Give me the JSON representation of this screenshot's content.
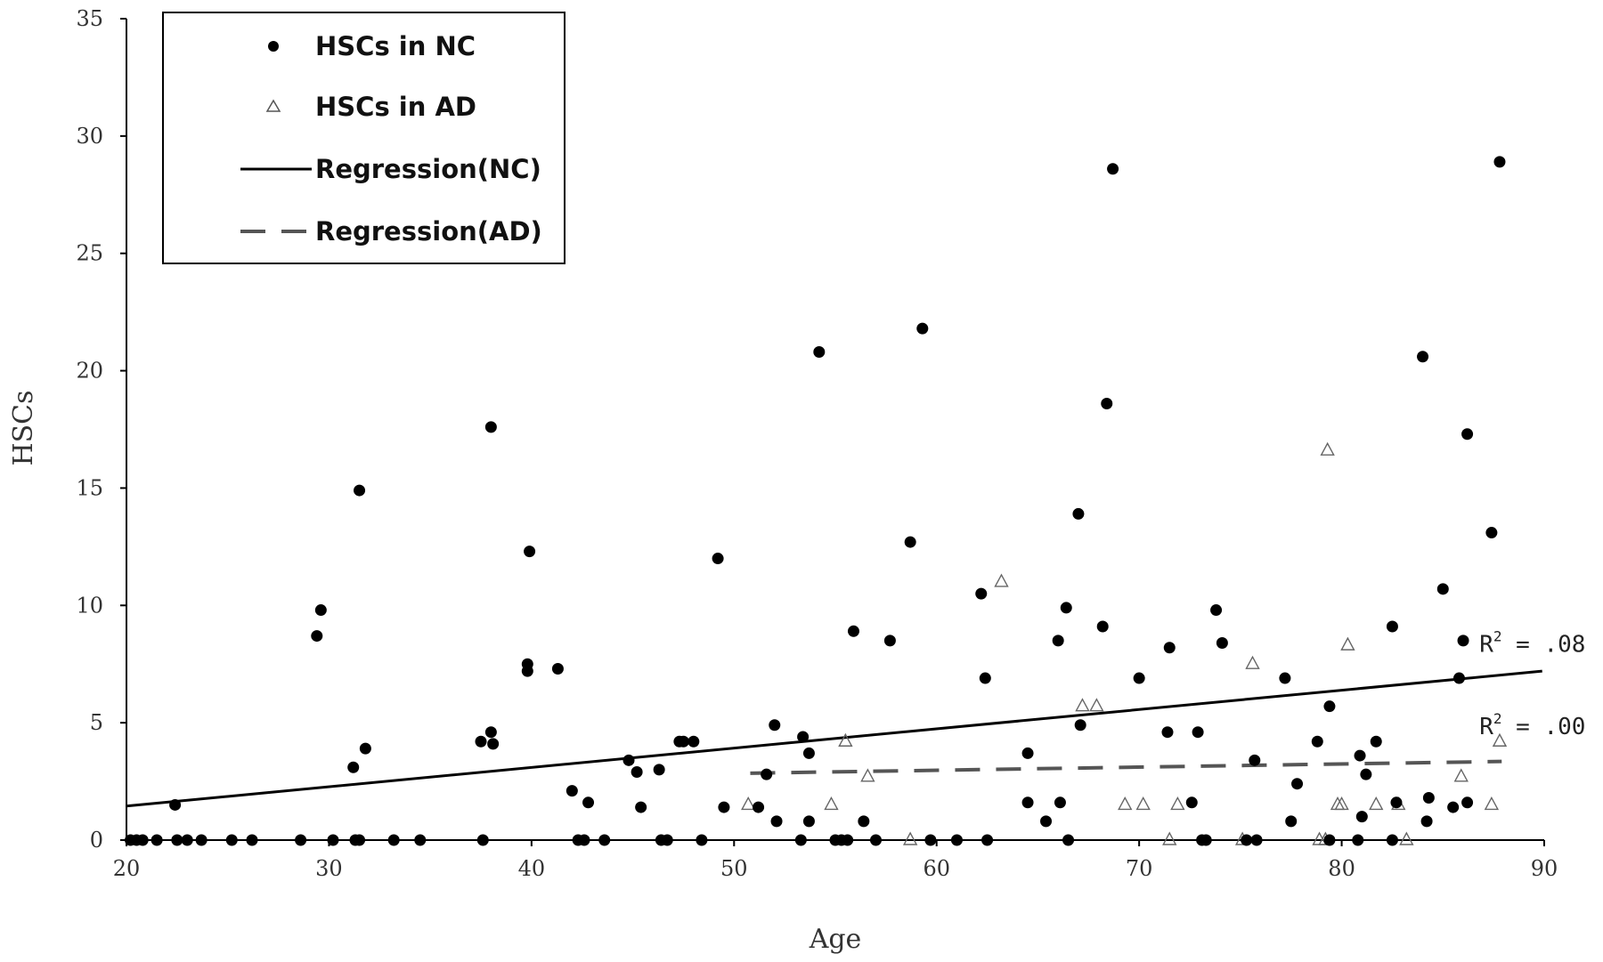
{
  "chart_data": {
    "type": "scatter",
    "title": "",
    "xlabel": "Age",
    "ylabel": "HSCs",
    "xlim": [
      20,
      90
    ],
    "ylim": [
      0,
      35
    ],
    "x_ticks": [
      "20",
      "30",
      "40",
      "50",
      "60",
      "70",
      "80",
      "90"
    ],
    "y_ticks": [
      "0",
      "5",
      "10",
      "15",
      "20",
      "25",
      "30",
      "35"
    ],
    "grid": false,
    "legend_position": "top-left",
    "legend": [
      {
        "label": "HSCs in NC",
        "marker": "filled-circle"
      },
      {
        "label": "HSCs in AD",
        "marker": "open-triangle"
      },
      {
        "label": "Regression(NC)",
        "marker": "solid-line"
      },
      {
        "label": "Regression(AD)",
        "marker": "dashed-line"
      }
    ],
    "series": [
      {
        "name": "HSCs in NC",
        "points": [
          [
            20.2,
            0
          ],
          [
            20.5,
            0
          ],
          [
            20.8,
            0
          ],
          [
            21.5,
            0
          ],
          [
            22.4,
            1.5
          ],
          [
            22.5,
            0
          ],
          [
            23.0,
            0
          ],
          [
            23.7,
            0
          ],
          [
            25.2,
            0
          ],
          [
            26.2,
            0
          ],
          [
            28.6,
            0
          ],
          [
            29.4,
            8.7
          ],
          [
            29.6,
            9.8
          ],
          [
            30.2,
            0
          ],
          [
            31.2,
            3.1
          ],
          [
            31.3,
            0
          ],
          [
            31.5,
            0
          ],
          [
            31.5,
            14.9
          ],
          [
            31.8,
            3.9
          ],
          [
            33.2,
            0
          ],
          [
            34.5,
            0
          ],
          [
            37.5,
            4.2
          ],
          [
            37.6,
            0
          ],
          [
            38.0,
            17.6
          ],
          [
            38.0,
            4.6
          ],
          [
            38.1,
            4.1
          ],
          [
            39.8,
            7.2
          ],
          [
            39.8,
            7.5
          ],
          [
            39.9,
            12.3
          ],
          [
            41.3,
            7.3
          ],
          [
            42.0,
            2.1
          ],
          [
            42.3,
            0
          ],
          [
            42.6,
            0
          ],
          [
            42.8,
            1.6
          ],
          [
            43.6,
            0
          ],
          [
            44.8,
            3.4
          ],
          [
            45.2,
            2.9
          ],
          [
            45.4,
            1.4
          ],
          [
            46.3,
            3.0
          ],
          [
            46.4,
            0
          ],
          [
            46.7,
            0
          ],
          [
            47.3,
            4.2
          ],
          [
            47.5,
            4.2
          ],
          [
            48.0,
            4.2
          ],
          [
            48.4,
            0
          ],
          [
            49.2,
            12.0
          ],
          [
            49.5,
            1.4
          ],
          [
            51.2,
            1.4
          ],
          [
            51.6,
            2.8
          ],
          [
            52.0,
            4.9
          ],
          [
            52.1,
            0.8
          ],
          [
            53.3,
            0
          ],
          [
            53.4,
            4.4
          ],
          [
            53.7,
            3.7
          ],
          [
            53.7,
            0.8
          ],
          [
            54.2,
            20.8
          ],
          [
            55.0,
            0
          ],
          [
            55.3,
            0
          ],
          [
            55.6,
            0
          ],
          [
            55.9,
            8.9
          ],
          [
            56.4,
            0.8
          ],
          [
            57.0,
            0
          ],
          [
            57.7,
            8.5
          ],
          [
            58.7,
            12.7
          ],
          [
            59.3,
            21.8
          ],
          [
            59.7,
            0
          ],
          [
            61.0,
            0
          ],
          [
            62.2,
            10.5
          ],
          [
            62.4,
            6.9
          ],
          [
            62.5,
            0
          ],
          [
            64.5,
            3.7
          ],
          [
            64.5,
            1.6
          ],
          [
            65.4,
            0.8
          ],
          [
            66.0,
            8.5
          ],
          [
            66.1,
            1.6
          ],
          [
            66.4,
            9.9
          ],
          [
            66.5,
            0
          ],
          [
            67.0,
            13.9
          ],
          [
            67.1,
            4.9
          ],
          [
            68.2,
            9.1
          ],
          [
            68.4,
            18.6
          ],
          [
            68.7,
            28.6
          ],
          [
            70.0,
            6.9
          ],
          [
            71.4,
            4.6
          ],
          [
            71.5,
            8.2
          ],
          [
            72.6,
            1.6
          ],
          [
            72.9,
            4.6
          ],
          [
            73.1,
            0
          ],
          [
            73.3,
            0
          ],
          [
            73.8,
            9.8
          ],
          [
            74.1,
            8.4
          ],
          [
            75.3,
            0
          ],
          [
            75.7,
            3.4
          ],
          [
            75.8,
            0
          ],
          [
            77.2,
            6.9
          ],
          [
            77.5,
            0.8
          ],
          [
            77.8,
            2.4
          ],
          [
            78.8,
            4.2
          ],
          [
            79.4,
            5.7
          ],
          [
            79.4,
            0
          ],
          [
            80.8,
            0
          ],
          [
            80.9,
            3.6
          ],
          [
            81.0,
            1.0
          ],
          [
            81.2,
            2.8
          ],
          [
            81.7,
            4.2
          ],
          [
            82.5,
            9.1
          ],
          [
            82.5,
            0
          ],
          [
            82.7,
            1.6
          ],
          [
            84.0,
            20.6
          ],
          [
            84.2,
            0.8
          ],
          [
            84.3,
            1.8
          ],
          [
            85.0,
            10.7
          ],
          [
            85.5,
            1.4
          ],
          [
            85.8,
            6.9
          ],
          [
            86.0,
            8.5
          ],
          [
            86.2,
            1.6
          ],
          [
            86.2,
            17.3
          ],
          [
            87.4,
            13.1
          ],
          [
            87.8,
            28.9
          ]
        ]
      },
      {
        "name": "HSCs in AD",
        "points": [
          [
            50.7,
            1.5
          ],
          [
            55.5,
            4.2
          ],
          [
            54.8,
            1.5
          ],
          [
            56.6,
            2.7
          ],
          [
            58.7,
            0
          ],
          [
            63.2,
            11.0
          ],
          [
            67.2,
            5.7
          ],
          [
            67.9,
            5.7
          ],
          [
            69.3,
            1.5
          ],
          [
            70.2,
            1.5
          ],
          [
            71.5,
            0
          ],
          [
            71.9,
            1.5
          ],
          [
            75.6,
            7.5
          ],
          [
            75.1,
            0
          ],
          [
            78.9,
            0
          ],
          [
            79.2,
            0
          ],
          [
            79.3,
            16.6
          ],
          [
            79.8,
            1.5
          ],
          [
            80.0,
            1.5
          ],
          [
            80.3,
            8.3
          ],
          [
            81.7,
            1.5
          ],
          [
            82.8,
            1.5
          ],
          [
            83.2,
            0
          ],
          [
            85.9,
            2.7
          ],
          [
            87.4,
            1.5
          ],
          [
            87.8,
            4.2
          ]
        ]
      }
    ],
    "regression": [
      {
        "name": "Regression(NC)",
        "x": [
          20,
          89.9
        ],
        "y": [
          1.45,
          7.2
        ],
        "style": "solid",
        "r2_label": "R",
        "r2_sup": "2",
        "r2_value": " = .08",
        "label_x": 86.8,
        "label_y": 8.4
      },
      {
        "name": "Regression(AD)",
        "x": [
          50.8,
          87.9
        ],
        "y": [
          2.85,
          3.35
        ],
        "style": "dashed",
        "r2_label": "R",
        "r2_sup": "2",
        "r2_value": " = .00",
        "label_x": 86.8,
        "label_y": 4.9
      }
    ],
    "colors": {
      "nc_points": "#000000",
      "ad_points": "#666666",
      "nc_line": "#000000",
      "ad_line": "#555555",
      "axis": "#000000"
    }
  }
}
